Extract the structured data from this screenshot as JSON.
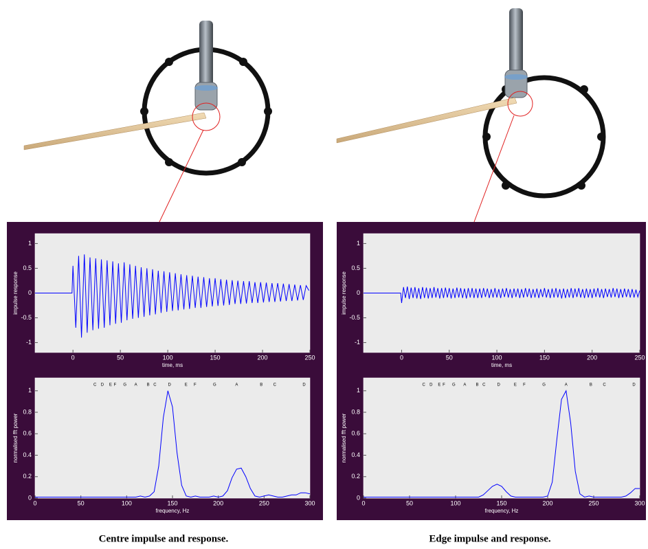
{
  "chart_data": [
    {
      "type": "line",
      "xlabel": "time, ms",
      "ylabel": "impulse response",
      "color": "#0000ff",
      "xlim": [
        -40,
        250
      ],
      "ylim": [
        -1.2,
        1.2
      ],
      "xticks": [
        0,
        50,
        100,
        150,
        200,
        250
      ],
      "yticks": [
        -1,
        -0.5,
        0,
        0.5,
        1
      ],
      "x": [
        -40,
        -1,
        0,
        3,
        6,
        9,
        12,
        15,
        18,
        21,
        24,
        27,
        30,
        33,
        36,
        39,
        42,
        45,
        48,
        51,
        54,
        57,
        60,
        63,
        66,
        69,
        72,
        75,
        78,
        81,
        84,
        87,
        90,
        93,
        96,
        99,
        102,
        105,
        108,
        111,
        114,
        117,
        120,
        123,
        126,
        129,
        132,
        135,
        138,
        141,
        144,
        147,
        150,
        153,
        156,
        159,
        162,
        165,
        168,
        171,
        174,
        177,
        180,
        183,
        186,
        189,
        192,
        195,
        198,
        201,
        204,
        207,
        210,
        213,
        216,
        219,
        222,
        225,
        228,
        231,
        234,
        237,
        240,
        243,
        246,
        249
      ],
      "values": [
        0,
        0,
        0.55,
        -0.7,
        0.75,
        -0.9,
        0.78,
        -0.8,
        0.72,
        -0.75,
        0.7,
        -0.72,
        0.68,
        -0.7,
        0.66,
        -0.65,
        0.64,
        -0.62,
        0.6,
        -0.6,
        0.62,
        -0.55,
        0.58,
        -0.52,
        0.55,
        -0.5,
        0.52,
        -0.48,
        0.5,
        -0.45,
        0.48,
        -0.43,
        0.45,
        -0.4,
        0.44,
        -0.38,
        0.42,
        -0.36,
        0.4,
        -0.35,
        0.38,
        -0.33,
        0.36,
        -0.32,
        0.35,
        -0.3,
        0.33,
        -0.3,
        0.32,
        -0.28,
        0.3,
        -0.27,
        0.3,
        -0.26,
        0.28,
        -0.25,
        0.27,
        -0.24,
        0.26,
        -0.22,
        0.25,
        -0.22,
        0.24,
        -0.21,
        0.24,
        -0.2,
        0.22,
        -0.2,
        0.22,
        -0.19,
        0.21,
        -0.18,
        0.2,
        -0.18,
        0.2,
        -0.17,
        0.19,
        -0.16,
        0.18,
        -0.16,
        0.17,
        -0.15,
        0.16,
        -0.14,
        0.15,
        0.05
      ]
    },
    {
      "type": "line",
      "xlabel": "frequency, Hz",
      "ylabel": "normalised fft power",
      "color": "#0000ff",
      "xlim": [
        0,
        300
      ],
      "ylim": [
        0,
        1.12
      ],
      "xticks": [
        0,
        50,
        100,
        150,
        200,
        250,
        300
      ],
      "yticks": [
        0,
        0.2,
        0.4,
        0.6,
        0.8,
        1
      ],
      "annotations": [
        {
          "text": "C",
          "x": 65.4
        },
        {
          "text": "D",
          "x": 73.4
        },
        {
          "text": "E",
          "x": 82.4
        },
        {
          "text": "F",
          "x": 87.3
        },
        {
          "text": "G",
          "x": 98
        },
        {
          "text": "A",
          "x": 110
        },
        {
          "text": "B",
          "x": 123.5
        },
        {
          "text": "C",
          "x": 130.8
        },
        {
          "text": "D",
          "x": 146.8
        },
        {
          "text": "E",
          "x": 164.8
        },
        {
          "text": "F",
          "x": 174.6
        },
        {
          "text": "G",
          "x": 196
        },
        {
          "text": "A",
          "x": 220
        },
        {
          "text": "B",
          "x": 246.9
        },
        {
          "text": "C",
          "x": 261.6
        },
        {
          "text": "D",
          "x": 293.7
        }
      ],
      "x": [
        0,
        5,
        10,
        15,
        20,
        25,
        30,
        35,
        40,
        45,
        50,
        55,
        60,
        65,
        70,
        75,
        80,
        85,
        90,
        95,
        100,
        105,
        110,
        115,
        120,
        125,
        130,
        135,
        140,
        145,
        150,
        155,
        160,
        165,
        170,
        175,
        180,
        185,
        190,
        195,
        200,
        205,
        210,
        215,
        220,
        225,
        230,
        235,
        240,
        245,
        250,
        255,
        260,
        265,
        270,
        275,
        280,
        285,
        290,
        295,
        300
      ],
      "values": [
        0.01,
        0.01,
        0.01,
        0.01,
        0.01,
        0.01,
        0.01,
        0.01,
        0.01,
        0.01,
        0.01,
        0.01,
        0.01,
        0.01,
        0.01,
        0.01,
        0.01,
        0.01,
        0.01,
        0.01,
        0.01,
        0.01,
        0.01,
        0.02,
        0.01,
        0.02,
        0.06,
        0.3,
        0.75,
        1.0,
        0.85,
        0.42,
        0.12,
        0.02,
        0.01,
        0.02,
        0.01,
        0.01,
        0.01,
        0.02,
        0.01,
        0.02,
        0.07,
        0.19,
        0.27,
        0.28,
        0.2,
        0.09,
        0.02,
        0.01,
        0.02,
        0.03,
        0.02,
        0.01,
        0.01,
        0.02,
        0.03,
        0.03,
        0.05,
        0.05,
        0.04
      ]
    },
    {
      "type": "line",
      "xlabel": "time, ms",
      "ylabel": "impulse response",
      "color": "#0000ff",
      "xlim": [
        -40,
        250
      ],
      "ylim": [
        -1.2,
        1.2
      ],
      "xticks": [
        0,
        50,
        100,
        150,
        200,
        250
      ],
      "yticks": [
        -1,
        -0.5,
        0,
        0.5,
        1
      ],
      "x": [
        -40,
        -1,
        0,
        2,
        4,
        6,
        8,
        10,
        12,
        14,
        16,
        18,
        20,
        22,
        24,
        26,
        28,
        30,
        32,
        34,
        36,
        38,
        40,
        42,
        44,
        46,
        48,
        50,
        52,
        54,
        56,
        58,
        60,
        62,
        64,
        66,
        68,
        70,
        72,
        74,
        76,
        78,
        80,
        82,
        84,
        86,
        88,
        90,
        92,
        94,
        96,
        98,
        100,
        102,
        104,
        106,
        108,
        110,
        112,
        114,
        116,
        118,
        120,
        122,
        124,
        126,
        128,
        130,
        132,
        134,
        136,
        138,
        140,
        142,
        144,
        146,
        148,
        150,
        152,
        154,
        156,
        158,
        160,
        162,
        164,
        166,
        168,
        170,
        172,
        174,
        176,
        178,
        180,
        182,
        184,
        186,
        188,
        190,
        192,
        194,
        196,
        198,
        200,
        202,
        204,
        206,
        208,
        210,
        212,
        214,
        216,
        218,
        220,
        222,
        224,
        226,
        228,
        230,
        232,
        234,
        236,
        238,
        240,
        242,
        244,
        246,
        248,
        250
      ],
      "values": [
        0,
        0,
        -0.2,
        0.12,
        -0.1,
        0.13,
        -0.12,
        0.11,
        -0.1,
        0.12,
        -0.11,
        0.1,
        -0.12,
        0.12,
        -0.1,
        0.11,
        -0.11,
        0.1,
        -0.1,
        0.12,
        -0.09,
        0.1,
        -0.11,
        0.1,
        -0.1,
        0.11,
        -0.09,
        0.1,
        -0.11,
        0.09,
        -0.1,
        0.11,
        -0.09,
        0.1,
        -0.1,
        0.09,
        -0.11,
        0.1,
        -0.09,
        0.1,
        -0.1,
        0.09,
        -0.1,
        0.09,
        -0.1,
        0.1,
        -0.08,
        0.09,
        -0.1,
        0.08,
        -0.09,
        0.1,
        -0.09,
        0.08,
        -0.1,
        0.09,
        -0.08,
        0.1,
        -0.09,
        0.08,
        -0.1,
        0.09,
        -0.08,
        0.09,
        -0.1,
        0.08,
        -0.09,
        0.1,
        -0.08,
        0.09,
        -0.1,
        0.08,
        -0.09,
        0.09,
        -0.1,
        0.08,
        -0.08,
        0.1,
        -0.09,
        0.08,
        -0.1,
        0.09,
        -0.09,
        0.1,
        -0.09,
        0.08,
        -0.11,
        0.09,
        -0.1,
        0.08,
        -0.09,
        0.1,
        -0.1,
        0.09,
        -0.08,
        0.1,
        -0.09,
        0.08,
        -0.1,
        0.09,
        -0.09,
        0.08,
        -0.1,
        0.09,
        -0.08,
        0.1,
        -0.09,
        0.08,
        -0.1,
        0.09,
        -0.08,
        0.08,
        -0.09,
        0.1,
        -0.08,
        0.09,
        -0.1,
        0.08,
        -0.09,
        0.09,
        -0.08,
        0.08,
        -0.09,
        0.08,
        -0.09,
        0.07,
        -0.08,
        0.05
      ]
    },
    {
      "type": "line",
      "xlabel": "frequency, Hz",
      "ylabel": "normalised fft power",
      "color": "#0000ff",
      "xlim": [
        0,
        300
      ],
      "ylim": [
        0,
        1.12
      ],
      "xticks": [
        0,
        50,
        100,
        150,
        200,
        250,
        300
      ],
      "yticks": [
        0,
        0.2,
        0.4,
        0.6,
        0.8,
        1
      ],
      "annotations": [
        {
          "text": "C",
          "x": 65.4
        },
        {
          "text": "D",
          "x": 73.4
        },
        {
          "text": "E",
          "x": 82.4
        },
        {
          "text": "F",
          "x": 87.3
        },
        {
          "text": "G",
          "x": 98
        },
        {
          "text": "A",
          "x": 110
        },
        {
          "text": "B",
          "x": 123.5
        },
        {
          "text": "C",
          "x": 130.8
        },
        {
          "text": "D",
          "x": 146.8
        },
        {
          "text": "E",
          "x": 164.8
        },
        {
          "text": "F",
          "x": 174.6
        },
        {
          "text": "G",
          "x": 196
        },
        {
          "text": "A",
          "x": 220
        },
        {
          "text": "B",
          "x": 246.9
        },
        {
          "text": "C",
          "x": 261.6
        },
        {
          "text": "D",
          "x": 293.7
        }
      ],
      "x": [
        0,
        5,
        10,
        15,
        20,
        25,
        30,
        35,
        40,
        45,
        50,
        55,
        60,
        65,
        70,
        75,
        80,
        85,
        90,
        95,
        100,
        105,
        110,
        115,
        120,
        125,
        130,
        135,
        140,
        145,
        150,
        155,
        160,
        165,
        170,
        175,
        180,
        185,
        190,
        195,
        200,
        205,
        210,
        215,
        220,
        225,
        230,
        235,
        240,
        245,
        250,
        255,
        260,
        265,
        270,
        275,
        280,
        285,
        290,
        295,
        300
      ],
      "values": [
        0.01,
        0.01,
        0.01,
        0.01,
        0.01,
        0.01,
        0.01,
        0.01,
        0.01,
        0.01,
        0.01,
        0.01,
        0.01,
        0.01,
        0.01,
        0.01,
        0.01,
        0.01,
        0.01,
        0.01,
        0.01,
        0.01,
        0.01,
        0.01,
        0.01,
        0.01,
        0.03,
        0.07,
        0.11,
        0.13,
        0.11,
        0.06,
        0.02,
        0.01,
        0.01,
        0.01,
        0.01,
        0.01,
        0.01,
        0.01,
        0.02,
        0.15,
        0.55,
        0.92,
        1.0,
        0.7,
        0.25,
        0.04,
        0.01,
        0.02,
        0.01,
        0.01,
        0.01,
        0.01,
        0.01,
        0.01,
        0.01,
        0.02,
        0.05,
        0.09,
        0.09
      ]
    }
  ],
  "captions": [
    "Centre impulse and response.",
    "Edge impulse and response."
  ]
}
